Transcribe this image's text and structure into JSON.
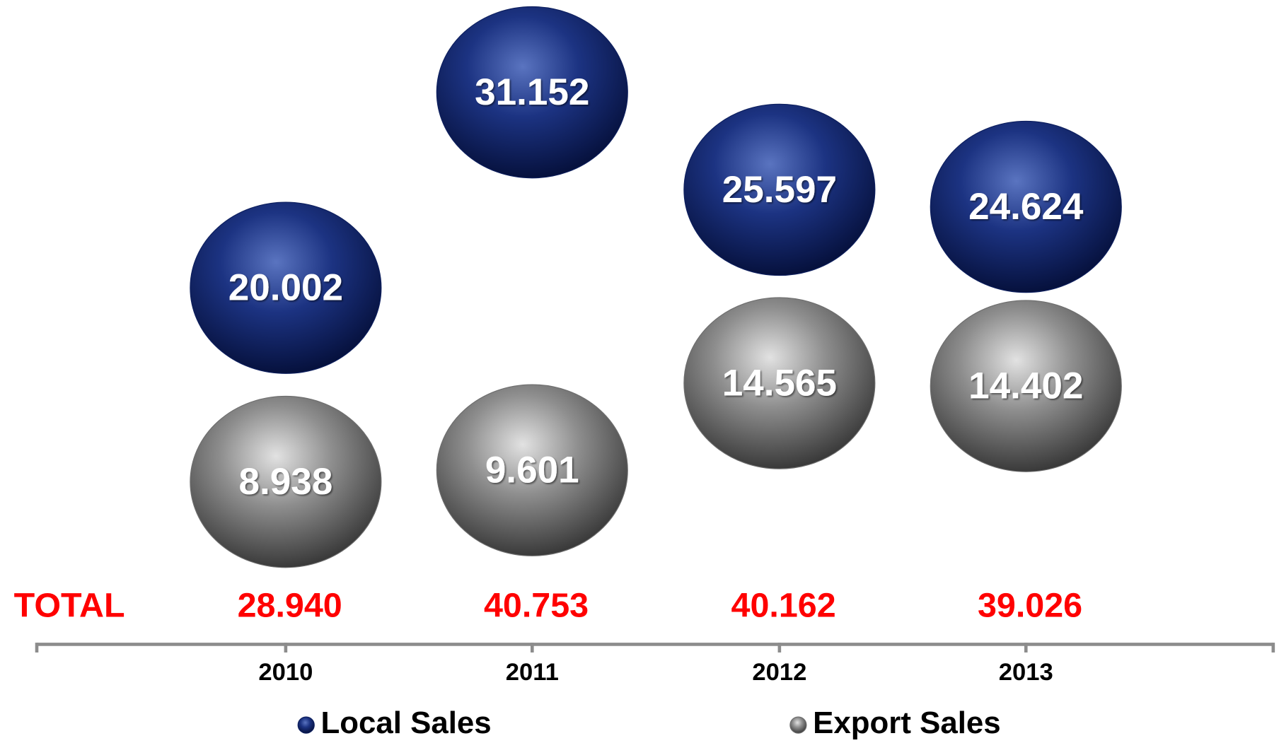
{
  "chart_data": {
    "type": "bubble",
    "categories": [
      "2010",
      "2011",
      "2012",
      "2013"
    ],
    "series": [
      {
        "name": "Local Sales",
        "color": "#0d1f5e",
        "values": [
          20.002,
          31.152,
          25.597,
          24.624
        ],
        "value_labels": [
          "20.002",
          "31.152",
          "25.597",
          "24.624"
        ]
      },
      {
        "name": "Export Sales",
        "color": "#6e6e6e",
        "values": [
          8.938,
          9.601,
          14.565,
          14.402
        ],
        "value_labels": [
          "8.938",
          "9.601",
          "14.565",
          "14.402"
        ]
      }
    ],
    "totals": {
      "label": "TOTAL",
      "values": [
        28.94,
        40.753,
        40.162,
        39.026
      ],
      "value_labels": [
        "28.940",
        "40.753",
        "40.162",
        "39.026"
      ]
    }
  }
}
